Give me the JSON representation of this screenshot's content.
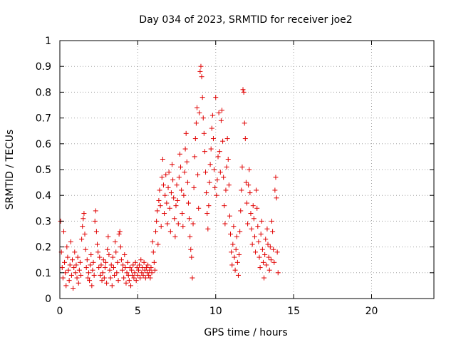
{
  "chart_data": {
    "type": "scatter",
    "title": "Day 034 of 2023, SRMTID for receiver joe2",
    "xlabel": "GPS time / hours",
    "ylabel": "SRMTID / TECUs",
    "xlim": [
      0,
      24
    ],
    "ylim": [
      0,
      1
    ],
    "xticks": [
      0,
      5,
      10,
      15,
      20
    ],
    "yticks": [
      0,
      0.1,
      0.2,
      0.3,
      0.4,
      0.5,
      0.6,
      0.7,
      0.8,
      0.9,
      1
    ],
    "xtick_labels": [
      "0",
      "5",
      "10",
      "15",
      "20"
    ],
    "ytick_labels": [
      "0",
      "0.1",
      "0.2",
      "0.3",
      "0.4",
      "0.5",
      "0.6",
      "0.7",
      "0.8",
      "0.9",
      "1"
    ],
    "grid": true,
    "marker": "+",
    "color": "#e00000",
    "series": [
      {
        "name": "SRMTID",
        "points": [
          [
            0.05,
            0.3
          ],
          [
            0.1,
            0.18
          ],
          [
            0.15,
            0.12
          ],
          [
            0.2,
            0.08
          ],
          [
            0.25,
            0.26
          ],
          [
            0.3,
            0.14
          ],
          [
            0.35,
            0.1
          ],
          [
            0.4,
            0.05
          ],
          [
            0.45,
            0.2
          ],
          [
            0.5,
            0.16
          ],
          [
            0.55,
            0.11
          ],
          [
            0.6,
            0.07
          ],
          [
            0.65,
            0.13
          ],
          [
            0.7,
            0.22
          ],
          [
            0.75,
            0.09
          ],
          [
            0.8,
            0.15
          ],
          [
            0.85,
            0.04
          ],
          [
            0.9,
            0.12
          ],
          [
            0.95,
            0.18
          ],
          [
            1.0,
            0.1
          ],
          [
            1.05,
            0.13
          ],
          [
            1.1,
            0.08
          ],
          [
            1.15,
            0.16
          ],
          [
            1.2,
            0.06
          ],
          [
            1.25,
            0.11
          ],
          [
            1.3,
            0.14
          ],
          [
            1.35,
            0.09
          ],
          [
            1.4,
            0.23
          ],
          [
            1.45,
            0.28
          ],
          [
            1.5,
            0.31
          ],
          [
            1.55,
            0.33
          ],
          [
            1.6,
            0.25
          ],
          [
            1.65,
            0.19
          ],
          [
            1.7,
            0.12
          ],
          [
            1.75,
            0.15
          ],
          [
            1.8,
            0.08
          ],
          [
            1.85,
            0.1
          ],
          [
            1.9,
            0.07
          ],
          [
            1.95,
            0.13
          ],
          [
            2.0,
            0.17
          ],
          [
            2.05,
            0.05
          ],
          [
            2.1,
            0.11
          ],
          [
            2.15,
            0.14
          ],
          [
            2.2,
            0.09
          ],
          [
            2.25,
            0.3
          ],
          [
            2.3,
            0.34
          ],
          [
            2.35,
            0.26
          ],
          [
            2.4,
            0.21
          ],
          [
            2.45,
            0.18
          ],
          [
            2.5,
            0.12
          ],
          [
            2.55,
            0.16
          ],
          [
            2.6,
            0.09
          ],
          [
            2.65,
            0.13
          ],
          [
            2.7,
            0.07
          ],
          [
            2.75,
            0.1
          ],
          [
            2.8,
            0.15
          ],
          [
            2.85,
            0.08
          ],
          [
            2.9,
            0.12
          ],
          [
            2.95,
            0.14
          ],
          [
            3.0,
            0.06
          ],
          [
            3.05,
            0.19
          ],
          [
            3.1,
            0.24
          ],
          [
            3.15,
            0.17
          ],
          [
            3.2,
            0.11
          ],
          [
            3.25,
            0.08
          ],
          [
            3.3,
            0.13
          ],
          [
            3.35,
            0.05
          ],
          [
            3.4,
            0.16
          ],
          [
            3.45,
            0.12
          ],
          [
            3.5,
            0.09
          ],
          [
            3.55,
            0.22
          ],
          [
            3.6,
            0.18
          ],
          [
            3.65,
            0.1
          ],
          [
            3.7,
            0.14
          ],
          [
            3.75,
            0.07
          ],
          [
            3.8,
            0.25
          ],
          [
            3.85,
            0.26
          ],
          [
            3.9,
            0.2
          ],
          [
            3.95,
            0.15
          ],
          [
            4.0,
            0.11
          ],
          [
            4.05,
            0.13
          ],
          [
            4.1,
            0.08
          ],
          [
            4.15,
            0.17
          ],
          [
            4.2,
            0.12
          ],
          [
            4.25,
            0.06
          ],
          [
            4.3,
            0.1
          ],
          [
            4.35,
            0.14
          ],
          [
            4.4,
            0.09
          ],
          [
            4.45,
            0.07
          ],
          [
            4.5,
            0.12
          ],
          [
            4.55,
            0.05
          ],
          [
            4.6,
            0.11
          ],
          [
            4.65,
            0.09
          ],
          [
            4.7,
            0.13
          ],
          [
            4.75,
            0.08
          ],
          [
            4.8,
            0.1
          ],
          [
            4.85,
            0.14
          ],
          [
            4.9,
            0.07
          ],
          [
            4.95,
            0.12
          ],
          [
            5.0,
            0.09
          ],
          [
            5.05,
            0.11
          ],
          [
            5.1,
            0.13
          ],
          [
            5.15,
            0.08
          ],
          [
            5.2,
            0.15
          ],
          [
            5.25,
            0.1
          ],
          [
            5.3,
            0.12
          ],
          [
            5.35,
            0.09
          ],
          [
            5.4,
            0.14
          ],
          [
            5.45,
            0.11
          ],
          [
            5.5,
            0.08
          ],
          [
            5.55,
            0.12
          ],
          [
            5.6,
            0.1
          ],
          [
            5.65,
            0.13
          ],
          [
            5.7,
            0.09
          ],
          [
            5.75,
            0.11
          ],
          [
            5.8,
            0.08
          ],
          [
            5.85,
            0.12
          ],
          [
            5.9,
            0.1
          ],
          [
            5.95,
            0.22
          ],
          [
            6.0,
            0.18
          ],
          [
            6.05,
            0.14
          ],
          [
            6.1,
            0.11
          ],
          [
            6.15,
            0.26
          ],
          [
            6.2,
            0.3
          ],
          [
            6.25,
            0.34
          ],
          [
            6.3,
            0.21
          ],
          [
            6.35,
            0.38
          ],
          [
            6.4,
            0.42
          ],
          [
            6.45,
            0.36
          ],
          [
            6.5,
            0.28
          ],
          [
            6.55,
            0.47
          ],
          [
            6.6,
            0.54
          ],
          [
            6.65,
            0.44
          ],
          [
            6.7,
            0.33
          ],
          [
            6.75,
            0.4
          ],
          [
            6.8,
            0.48
          ],
          [
            6.85,
            0.37
          ],
          [
            6.9,
            0.29
          ],
          [
            6.95,
            0.43
          ],
          [
            7.0,
            0.49
          ],
          [
            7.05,
            0.35
          ],
          [
            7.1,
            0.26
          ],
          [
            7.15,
            0.41
          ],
          [
            7.2,
            0.52
          ],
          [
            7.25,
            0.46
          ],
          [
            7.3,
            0.39
          ],
          [
            7.35,
            0.31
          ],
          [
            7.4,
            0.24
          ],
          [
            7.45,
            0.36
          ],
          [
            7.5,
            0.44
          ],
          [
            7.55,
            0.38
          ],
          [
            7.6,
            0.29
          ],
          [
            7.65,
            0.47
          ],
          [
            7.7,
            0.56
          ],
          [
            7.75,
            0.51
          ],
          [
            7.8,
            0.42
          ],
          [
            7.85,
            0.33
          ],
          [
            7.9,
            0.28
          ],
          [
            7.95,
            0.4
          ],
          [
            8.0,
            0.49
          ],
          [
            8.05,
            0.58
          ],
          [
            8.1,
            0.64
          ],
          [
            8.15,
            0.53
          ],
          [
            8.2,
            0.45
          ],
          [
            8.25,
            0.37
          ],
          [
            8.3,
            0.31
          ],
          [
            8.35,
            0.24
          ],
          [
            8.4,
            0.19
          ],
          [
            8.45,
            0.16
          ],
          [
            8.5,
            0.08
          ],
          [
            8.55,
            0.29
          ],
          [
            8.6,
            0.43
          ],
          [
            8.65,
            0.55
          ],
          [
            8.7,
            0.62
          ],
          [
            8.75,
            0.68
          ],
          [
            8.8,
            0.74
          ],
          [
            8.85,
            0.48
          ],
          [
            8.9,
            0.35
          ],
          [
            8.95,
            0.72
          ],
          [
            9.0,
            0.88
          ],
          [
            9.05,
            0.9
          ],
          [
            9.1,
            0.86
          ],
          [
            9.15,
            0.78
          ],
          [
            9.2,
            0.7
          ],
          [
            9.25,
            0.64
          ],
          [
            9.3,
            0.57
          ],
          [
            9.35,
            0.49
          ],
          [
            9.4,
            0.41
          ],
          [
            9.45,
            0.33
          ],
          [
            9.5,
            0.27
          ],
          [
            9.55,
            0.36
          ],
          [
            9.6,
            0.45
          ],
          [
            9.65,
            0.52
          ],
          [
            9.7,
            0.58
          ],
          [
            9.75,
            0.66
          ],
          [
            9.8,
            0.71
          ],
          [
            9.85,
            0.62
          ],
          [
            9.9,
            0.5
          ],
          [
            9.95,
            0.43
          ],
          [
            10.0,
            0.78
          ],
          [
            10.05,
            0.4
          ],
          [
            10.1,
            0.46
          ],
          [
            10.15,
            0.55
          ],
          [
            10.2,
            0.72
          ],
          [
            10.25,
            0.57
          ],
          [
            10.3,
            0.49
          ],
          [
            10.35,
            0.69
          ],
          [
            10.4,
            0.73
          ],
          [
            10.45,
            0.61
          ],
          [
            10.5,
            0.47
          ],
          [
            10.55,
            0.36
          ],
          [
            10.6,
            0.29
          ],
          [
            10.65,
            0.42
          ],
          [
            10.7,
            0.51
          ],
          [
            10.75,
            0.62
          ],
          [
            10.8,
            0.54
          ],
          [
            10.85,
            0.44
          ],
          [
            10.9,
            0.32
          ],
          [
            10.95,
            0.25
          ],
          [
            11.0,
            0.18
          ],
          [
            11.05,
            0.13
          ],
          [
            11.1,
            0.21
          ],
          [
            11.15,
            0.28
          ],
          [
            11.2,
            0.16
          ],
          [
            11.25,
            0.11
          ],
          [
            11.3,
            0.19
          ],
          [
            11.35,
            0.24
          ],
          [
            11.4,
            0.14
          ],
          [
            11.45,
            0.09
          ],
          [
            11.5,
            0.17
          ],
          [
            11.55,
            0.26
          ],
          [
            11.6,
            0.34
          ],
          [
            11.65,
            0.42
          ],
          [
            11.7,
            0.51
          ],
          [
            11.75,
            0.81
          ],
          [
            11.8,
            0.8
          ],
          [
            11.85,
            0.68
          ],
          [
            11.9,
            0.62
          ],
          [
            11.95,
            0.45
          ],
          [
            12.0,
            0.37
          ],
          [
            12.05,
            0.29
          ],
          [
            12.1,
            0.44
          ],
          [
            12.15,
            0.5
          ],
          [
            12.2,
            0.41
          ],
          [
            12.25,
            0.33
          ],
          [
            12.3,
            0.27
          ],
          [
            12.35,
            0.21
          ],
          [
            12.4,
            0.36
          ],
          [
            12.45,
            0.31
          ],
          [
            12.5,
            0.24
          ],
          [
            12.55,
            0.18
          ],
          [
            12.6,
            0.42
          ],
          [
            12.65,
            0.35
          ],
          [
            12.7,
            0.28
          ],
          [
            12.75,
            0.22
          ],
          [
            12.8,
            0.16
          ],
          [
            12.85,
            0.12
          ],
          [
            12.9,
            0.25
          ],
          [
            12.95,
            0.3
          ],
          [
            13.0,
            0.19
          ],
          [
            13.05,
            0.14
          ],
          [
            13.1,
            0.08
          ],
          [
            13.15,
            0.17
          ],
          [
            13.2,
            0.23
          ],
          [
            13.25,
            0.13
          ],
          [
            13.3,
            0.27
          ],
          [
            13.35,
            0.21
          ],
          [
            13.4,
            0.16
          ],
          [
            13.45,
            0.11
          ],
          [
            13.5,
            0.2
          ],
          [
            13.55,
            0.15
          ],
          [
            13.6,
            0.3
          ],
          [
            13.65,
            0.26
          ],
          [
            13.7,
            0.19
          ],
          [
            13.75,
            0.14
          ],
          [
            13.8,
            0.42
          ],
          [
            13.85,
            0.47
          ],
          [
            13.9,
            0.39
          ],
          [
            13.95,
            0.18
          ],
          [
            14.0,
            0.1
          ]
        ]
      }
    ]
  }
}
